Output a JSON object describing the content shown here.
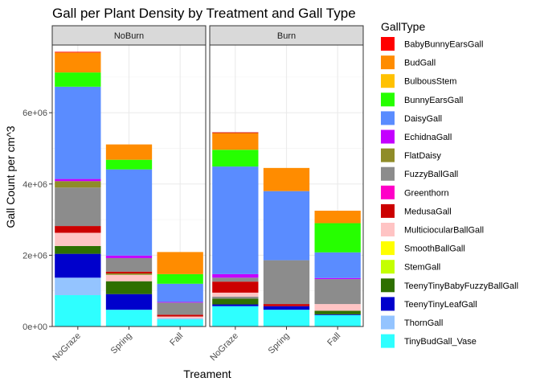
{
  "chart_data": {
    "type": "bar",
    "stacked": true,
    "title": "Gall per Plant Density by Treatment and Gall Type",
    "xlabel": "Treament",
    "ylabel": "Gall Count per cm^3",
    "ylim": [
      0,
      7900000
    ],
    "yticks": [
      0,
      2000000,
      4000000,
      6000000
    ],
    "ytick_labels": [
      "0e+00",
      "2e+06",
      "4e+06",
      "6e+06"
    ],
    "grid": true,
    "legend_position": "right",
    "legend_title": "GallType",
    "categories": [
      "NoGraze",
      "Spring",
      "Fall"
    ],
    "facets": [
      {
        "label": "NoBurn",
        "stacks": [
          [
            {
              "type": "TinyBudGall_Vase",
              "value": 880000
            },
            {
              "type": "ThornGall",
              "value": 490000
            },
            {
              "type": "TeenyTinyLeafGall",
              "value": 670000
            },
            {
              "type": "TeenyTinyBabyFuzzyBallGall",
              "value": 220000
            },
            {
              "type": "MulticiocularBallGall",
              "value": 370000
            },
            {
              "type": "MedusaGall",
              "value": 190000
            },
            {
              "type": "FuzzyBallGall",
              "value": 1080000
            },
            {
              "type": "FlatDaisy",
              "value": 180000
            },
            {
              "type": "EchidnaGall",
              "value": 60000
            },
            {
              "type": "DaisyGall",
              "value": 2590000
            },
            {
              "type": "BunnyEarsGall",
              "value": 400000
            },
            {
              "type": "BudGall",
              "value": 560000
            },
            {
              "type": "BabyBunnyEarsGall",
              "value": 20000
            }
          ],
          [
            {
              "type": "TinyBudGall_Vase",
              "value": 470000
            },
            {
              "type": "TeenyTinyLeafGall",
              "value": 440000
            },
            {
              "type": "TeenyTinyBabyFuzzyBallGall",
              "value": 360000
            },
            {
              "type": "MulticiocularBallGall",
              "value": 180000
            },
            {
              "type": "FlatDaisy",
              "value": 40000
            },
            {
              "type": "MedusaGall",
              "value": 50000
            },
            {
              "type": "FuzzyBallGall",
              "value": 380000
            },
            {
              "type": "EchidnaGall",
              "value": 70000
            },
            {
              "type": "DaisyGall",
              "value": 2420000
            },
            {
              "type": "BunnyEarsGall",
              "value": 270000
            },
            {
              "type": "BudGall",
              "value": 430000
            }
          ],
          [
            {
              "type": "TinyBudGall_Vase",
              "value": 200000
            },
            {
              "type": "ThornGall",
              "value": 30000
            },
            {
              "type": "MulticiocularBallGall",
              "value": 50000
            },
            {
              "type": "MedusaGall",
              "value": 50000
            },
            {
              "type": "FuzzyBallGall",
              "value": 340000
            },
            {
              "type": "EchidnaGall",
              "value": 20000
            },
            {
              "type": "DaisyGall",
              "value": 510000
            },
            {
              "type": "BunnyEarsGall",
              "value": 270000
            },
            {
              "type": "BudGall",
              "value": 620000
            }
          ]
        ]
      },
      {
        "label": "Burn",
        "stacks": [
          [
            {
              "type": "TinyBudGall_Vase",
              "value": 570000
            },
            {
              "type": "TeenyTinyLeafGall",
              "value": 50000
            },
            {
              "type": "TeenyTinyBabyFuzzyBallGall",
              "value": 160000
            },
            {
              "type": "FuzzyBallGall",
              "value": 60000
            },
            {
              "type": "MulticiocularBallGall",
              "value": 110000
            },
            {
              "type": "MedusaGall",
              "value": 310000
            },
            {
              "type": "FuzzyBallGall",
              "value": 110000
            },
            {
              "type": "EchidnaGall",
              "value": 100000
            },
            {
              "type": "DaisyGall",
              "value": 3020000
            },
            {
              "type": "BunnyEarsGall",
              "value": 470000
            },
            {
              "type": "BudGall",
              "value": 470000
            },
            {
              "type": "MedusaGall",
              "value": 20000
            }
          ],
          [
            {
              "type": "TinyBudGall_Vase",
              "value": 470000
            },
            {
              "type": "TeenyTinyLeafGall",
              "value": 100000
            },
            {
              "type": "MedusaGall",
              "value": 60000
            },
            {
              "type": "FuzzyBallGall",
              "value": 1230000
            },
            {
              "type": "DaisyGall",
              "value": 1940000
            },
            {
              "type": "BudGall",
              "value": 650000
            }
          ],
          [
            {
              "type": "TinyBudGall_Vase",
              "value": 320000
            },
            {
              "type": "TeenyTinyLeafGall",
              "value": 20000
            },
            {
              "type": "TeenyTinyBabyFuzzyBallGall",
              "value": 100000
            },
            {
              "type": "MulticiocularBallGall",
              "value": 190000
            },
            {
              "type": "FuzzyBallGall",
              "value": 700000
            },
            {
              "type": "EchidnaGall",
              "value": 30000
            },
            {
              "type": "DaisyGall",
              "value": 720000
            },
            {
              "type": "BunnyEarsGall",
              "value": 820000
            },
            {
              "type": "BudGall",
              "value": 350000
            }
          ]
        ]
      }
    ],
    "legend": [
      {
        "name": "BabyBunnyEarsGall",
        "color": "#FF0000"
      },
      {
        "name": "BudGall",
        "color": "#FF8C00"
      },
      {
        "name": "BulbousStem",
        "color": "#FFC100"
      },
      {
        "name": "BunnyEarsGall",
        "color": "#26FF00"
      },
      {
        "name": "DaisyGall",
        "color": "#5A8CFF"
      },
      {
        "name": "EchidnaGall",
        "color": "#C400FF"
      },
      {
        "name": "FlatDaisy",
        "color": "#8F8C28"
      },
      {
        "name": "FuzzyBallGall",
        "color": "#8C8C8C"
      },
      {
        "name": "Greenthorn",
        "color": "#FF00C8"
      },
      {
        "name": "MedusaGall",
        "color": "#CC0000"
      },
      {
        "name": "MulticiocularBallGall",
        "color": "#FFC4C4"
      },
      {
        "name": "SmoothBallGall",
        "color": "#FFFF00"
      },
      {
        "name": "StemGall",
        "color": "#C4FF00"
      },
      {
        "name": "TeenyTinyBabyFuzzyBallGall",
        "color": "#2E7000"
      },
      {
        "name": "TeenyTinyLeafGall",
        "color": "#0000CC"
      },
      {
        "name": "ThornGall",
        "color": "#94C4FF"
      },
      {
        "name": "TinyBudGall_Vase",
        "color": "#2EFFFF"
      }
    ]
  }
}
